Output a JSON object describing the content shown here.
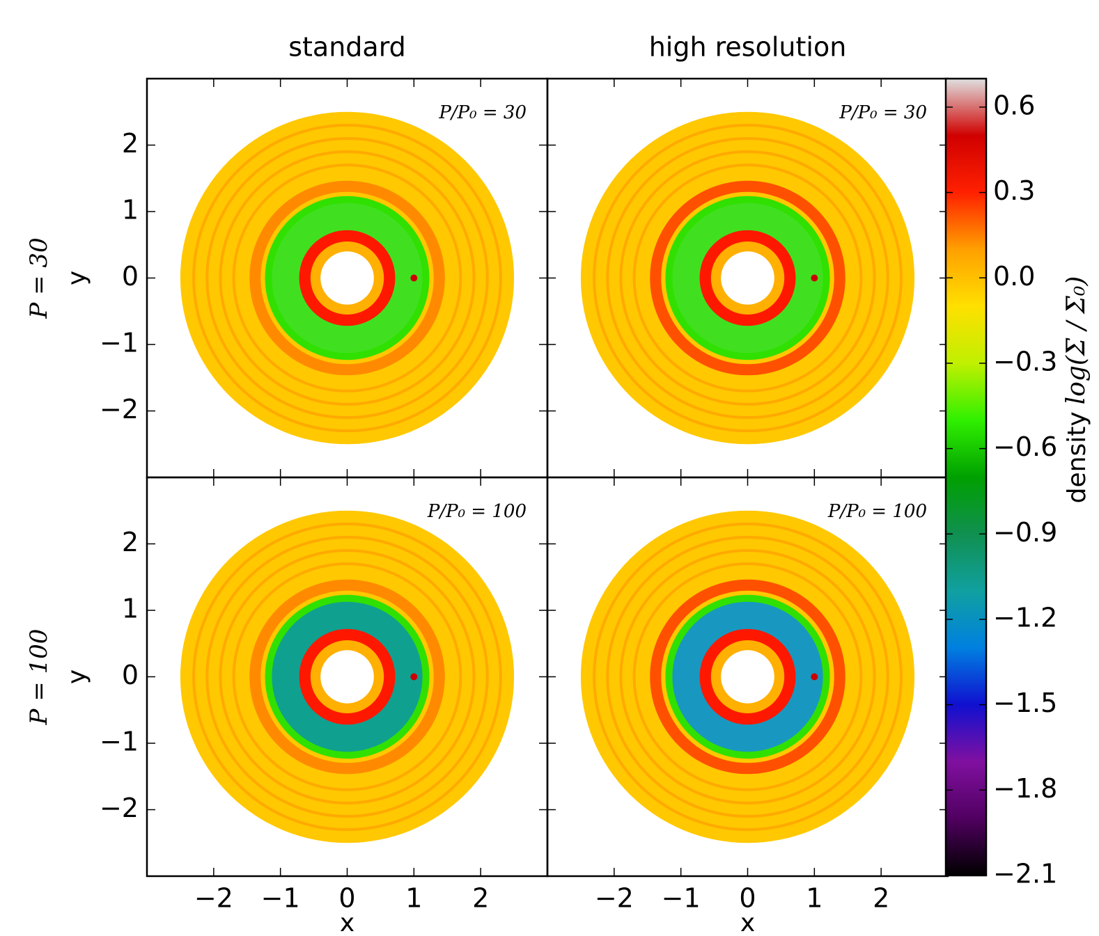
{
  "chart_data": {
    "type": "density-map",
    "column_titles": [
      "standard",
      "high resolution"
    ],
    "row_labels": [
      "P = 30",
      "P = 100"
    ],
    "panel_labels": [
      [
        "P/P₀ = 30",
        "P/P₀ = 30"
      ],
      [
        "P/P₀ = 100",
        "P/P₀ = 100"
      ]
    ],
    "xlabel": "x",
    "ylabel": "y",
    "xlim": [
      -3,
      3
    ],
    "ylim": [
      -3,
      3
    ],
    "xticks": [
      {
        "value": -2,
        "label": "−2"
      },
      {
        "value": -1,
        "label": "−1"
      },
      0,
      1,
      2
    ],
    "yticks": [
      {
        "value": -2,
        "label": "−2"
      },
      {
        "value": -1,
        "label": "−1"
      },
      0,
      1,
      2
    ],
    "colorbar": {
      "label": "density",
      "unit": "log(Σ / Σ₀)",
      "lim": [
        -2.1,
        0.7
      ],
      "ticks": [
        {
          "value": -2.1,
          "label": "−2.1"
        },
        {
          "value": -1.8,
          "label": "−1.8"
        },
        {
          "value": -1.5,
          "label": "−1.5"
        },
        {
          "value": -1.2,
          "label": "−1.2"
        },
        {
          "value": -0.9,
          "label": "−0.9"
        },
        {
          "value": -0.6,
          "label": "−0.6"
        },
        {
          "value": -0.3,
          "label": "−0.3"
        },
        {
          "value": 0,
          "label": "0.0"
        },
        0.3,
        0.6
      ],
      "colormap": [
        "#000000",
        "#500060",
        "#8010a0",
        "#1010d0",
        "#0080e0",
        "#10a0a0",
        "#109050",
        "#00a000",
        "#30f000",
        "#c0f000",
        "#ffe000",
        "#ffa000",
        "#ff2000",
        "#d00000",
        "#e0e0e0"
      ]
    }
  }
}
